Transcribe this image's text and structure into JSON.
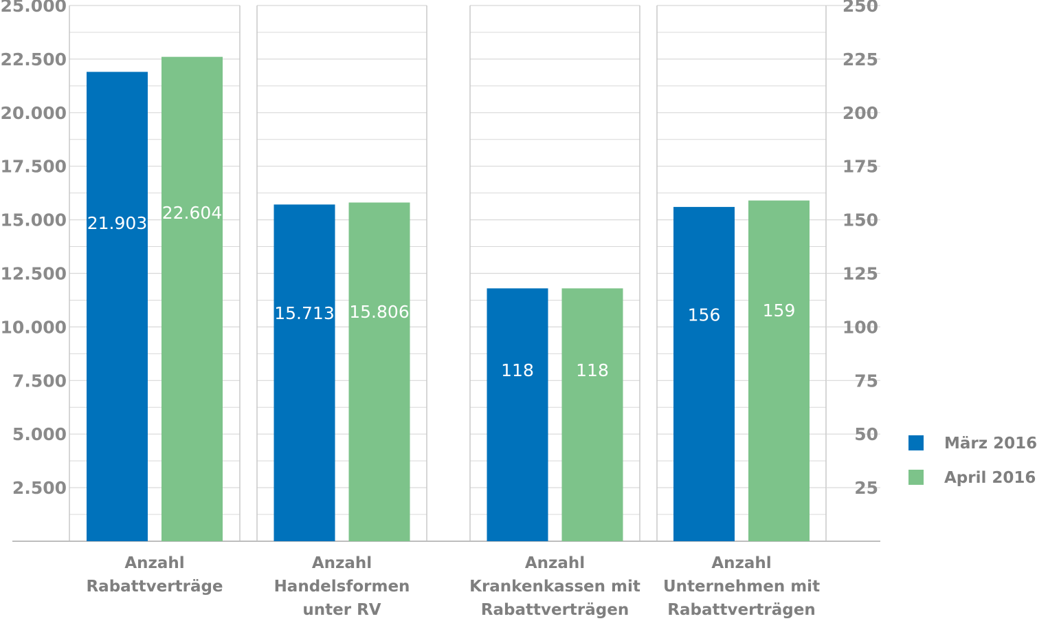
{
  "chart_data": {
    "type": "bar",
    "series": [
      {
        "name": "März 2016",
        "color": "#0072bb"
      },
      {
        "name": "April 2016",
        "color": "#7dc38a"
      }
    ],
    "groups": [
      {
        "label": [
          "Anzahl",
          "Rabattverträge"
        ],
        "axis": "left",
        "values": [
          21903,
          22604
        ],
        "value_labels": [
          "21.903",
          "22.604"
        ]
      },
      {
        "label": [
          "Anzahl",
          "Handelsformen",
          "unter RV"
        ],
        "axis": "left",
        "values": [
          15713,
          15806
        ],
        "value_labels": [
          "15.713",
          "15.806"
        ]
      },
      {
        "label": [
          "Anzahl",
          "Krankenkassen mit",
          "Rabattverträgen"
        ],
        "axis": "right",
        "values": [
          118,
          118
        ],
        "value_labels": [
          "118",
          "118"
        ]
      },
      {
        "label": [
          "Anzahl",
          "Unternehmen mit",
          "Rabattverträgen"
        ],
        "axis": "right",
        "values": [
          156,
          159
        ],
        "value_labels": [
          "156",
          "159"
        ]
      }
    ],
    "left_axis": {
      "ylim": [
        0,
        25000
      ],
      "ticks": [
        2500,
        5000,
        7500,
        10000,
        12500,
        15000,
        17500,
        20000,
        22500,
        25000
      ],
      "tick_labels": [
        "2.500",
        "5.000",
        "7.500",
        "10.000",
        "12.500",
        "15.000",
        "17.500",
        "20.000",
        "22.500",
        "25.000"
      ]
    },
    "right_axis": {
      "ylim": [
        0,
        250
      ],
      "ticks": [
        25,
        50,
        75,
        100,
        125,
        150,
        175,
        200,
        225,
        250
      ],
      "tick_labels": [
        "25",
        "50",
        "75",
        "100",
        "125",
        "150",
        "175",
        "200",
        "225",
        "250"
      ]
    },
    "grid": true,
    "legend_position": "right"
  }
}
